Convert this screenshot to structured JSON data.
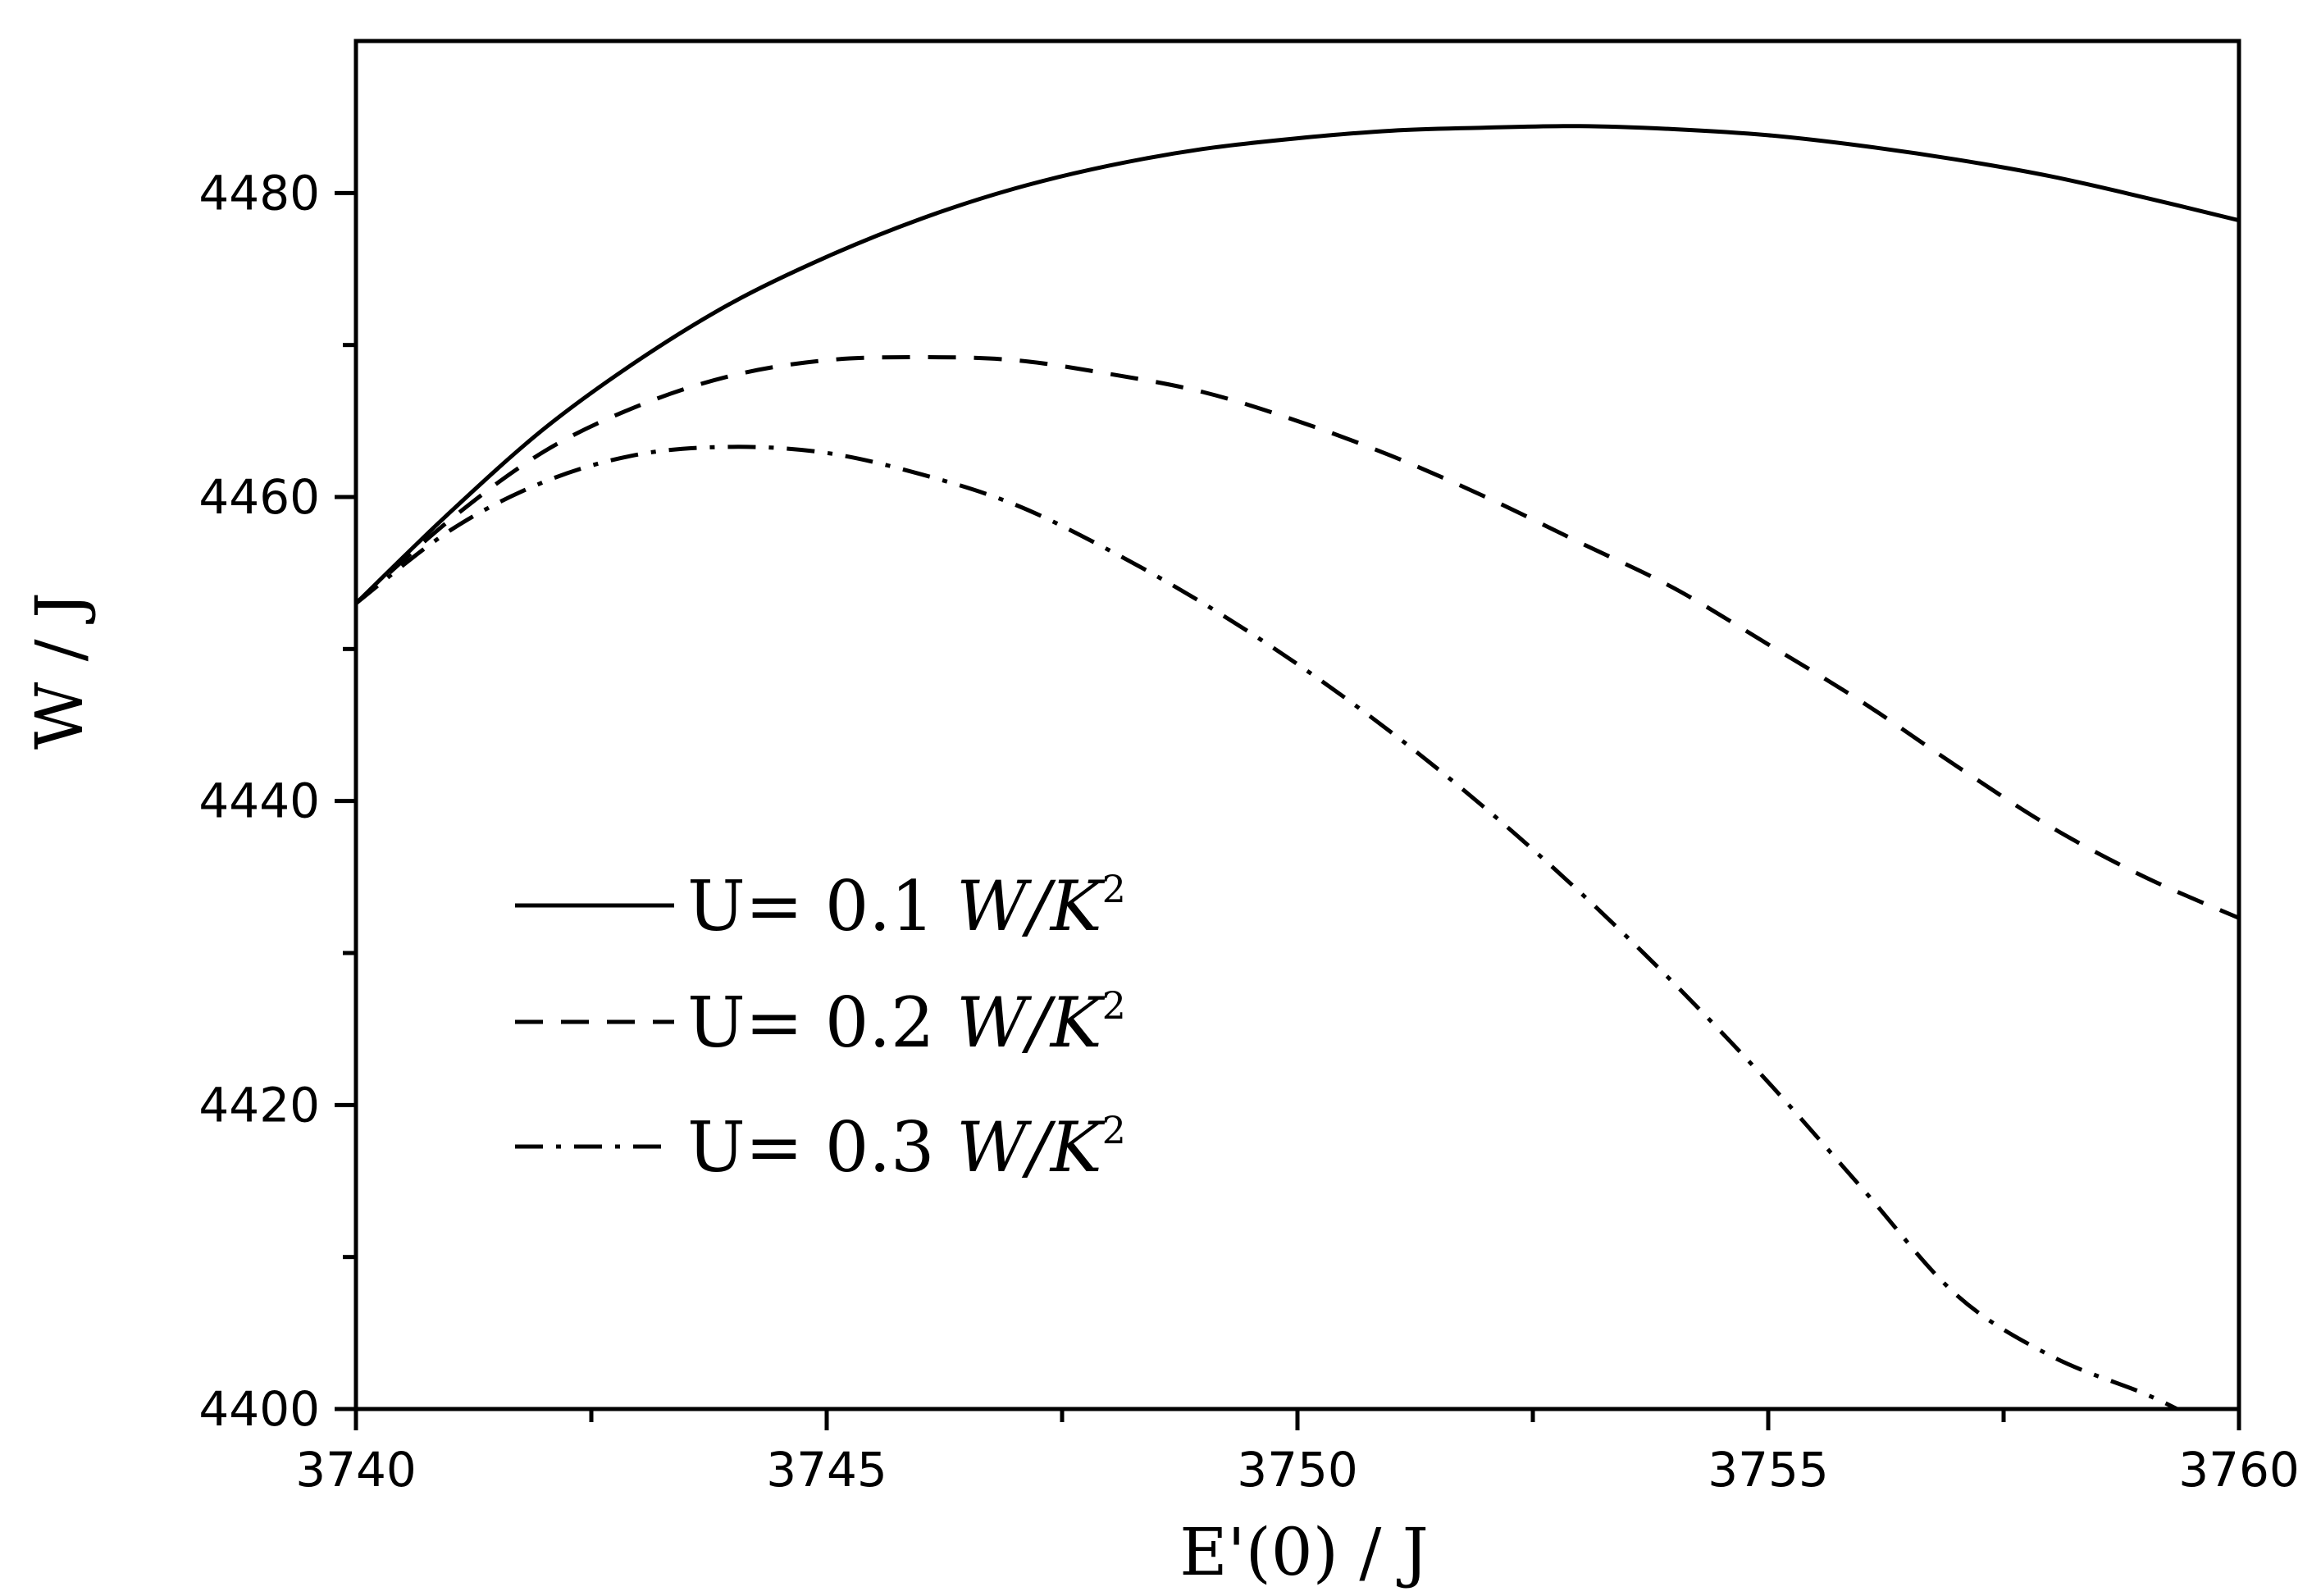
{
  "chart_data": {
    "type": "line",
    "title": "",
    "xlabel": "E'(0)  / J",
    "ylabel": "W / J",
    "xlim": [
      3740,
      3760
    ],
    "ylim": [
      4400,
      4490
    ],
    "xticks": [
      3740,
      3745,
      3750,
      3755,
      3760
    ],
    "yticks": [
      4400,
      4420,
      4440,
      4460,
      4480
    ],
    "grid": false,
    "legend_position": "center-left",
    "series": [
      {
        "name_prefix": "U= 0.1 ",
        "name_unit": "W/K",
        "name_exp": "2",
        "style": "solid",
        "x": [
          3740,
          3741,
          3742,
          3743,
          3744,
          3745,
          3746,
          3747,
          3748,
          3749,
          3750,
          3751,
          3752,
          3753,
          3754,
          3755,
          3756,
          3757,
          3758,
          3759,
          3760
        ],
        "y": [
          4453,
          4459,
          4464.5,
          4469,
          4472.8,
          4475.8,
          4478.3,
          4480.3,
          4481.8,
          4482.9,
          4483.6,
          4484.1,
          4484.3,
          4484.4,
          4484.2,
          4483.8,
          4483.1,
          4482.2,
          4481.1,
          4479.7,
          4478.2
        ]
      },
      {
        "name_prefix": "U= 0.2 ",
        "name_unit": "W/K",
        "name_exp": "2",
        "style": "dashed",
        "x": [
          3740,
          3741,
          3742,
          3743,
          3744,
          3745,
          3746,
          3747,
          3748,
          3749,
          3750,
          3751,
          3752,
          3753,
          3754,
          3755,
          3756,
          3757,
          3758,
          3759,
          3760
        ],
        "y": [
          4453,
          4458.5,
          4463,
          4466,
          4468,
          4469,
          4469.2,
          4469,
          4468.1,
          4466.9,
          4465,
          4462.7,
          4460,
          4457,
          4454,
          4450.3,
          4446.5,
          4442.3,
          4438.3,
          4435,
          4432.3
        ]
      },
      {
        "name_prefix": "U= 0.3 ",
        "name_unit": "W/K",
        "name_exp": "2",
        "style": "dashdot",
        "x": [
          3740,
          3741,
          3742,
          3743,
          3744,
          3745,
          3746,
          3747,
          3748,
          3749,
          3750,
          3751,
          3752,
          3753,
          3754,
          3755,
          3756,
          3757,
          3758,
          3759,
          3759.5
        ],
        "y": [
          4453,
          4457.8,
          4461,
          4462.8,
          4463.3,
          4462.9,
          4461.5,
          4459.5,
          4456.5,
          4453,
          4449,
          4444.5,
          4439.5,
          4434,
          4428,
          4421.5,
          4414.5,
          4407.5,
          4403.5,
          4401,
          4399.5
        ]
      }
    ]
  }
}
